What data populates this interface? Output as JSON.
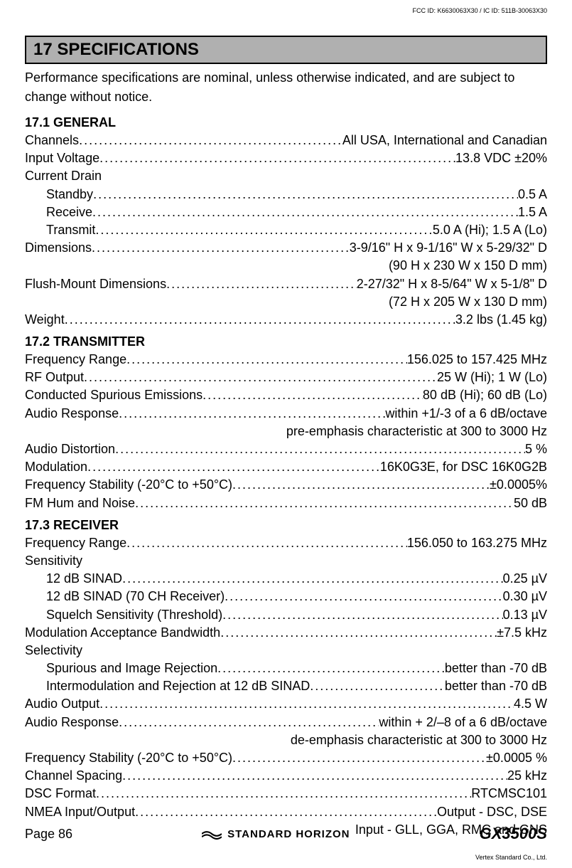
{
  "header_id": "FCC ID: K6630063X30 / IC ID: 511B-30063X30",
  "section": {
    "title": "17  SPECIFICATIONS",
    "intro": "Performance specifications are nominal, unless otherwise indicated, and are subject to change without notice."
  },
  "general": {
    "title": "17.1  GENERAL",
    "specs": [
      {
        "label": "Channels",
        "value": "All USA, International and Canadian",
        "indent": false
      },
      {
        "label": "Input Voltage",
        "value": "13.8 VDC ±20%",
        "indent": false
      },
      {
        "label": "Current Drain",
        "value": "",
        "indent": false,
        "nodots": true
      },
      {
        "label": "Standby",
        "value": "0.5 A",
        "indent": true
      },
      {
        "label": "Receive",
        "value": "1.5 A",
        "indent": true
      },
      {
        "label": "Transmit",
        "value": "5.0 A (Hi); 1.5 A (Lo)",
        "indent": true
      },
      {
        "label": "Dimensions",
        "value": "3-9/16\" H x 9-1/16\" W x 5-29/32\" D",
        "indent": false
      },
      {
        "label": "",
        "value": "(90 H x 230 W x 150 D mm)",
        "indent": false,
        "continuation": true
      },
      {
        "label": "Flush-Mount Dimensions",
        "value": "2-27/32\" H x 8-5/64\" W x 5-1/8\" D",
        "indent": false
      },
      {
        "label": "",
        "value": "(72 H x 205 W x 130 D mm)",
        "indent": false,
        "continuation": true
      },
      {
        "label": "Weight",
        "value": "3.2 lbs (1.45 kg)",
        "indent": false
      }
    ]
  },
  "transmitter": {
    "title": "17.2  TRANSMITTER",
    "specs": [
      {
        "label": "Frequency Range",
        "value": "156.025 to 157.425 MHz",
        "indent": false
      },
      {
        "label": "RF Output",
        "value": "25 W (Hi); 1 W (Lo)",
        "indent": false
      },
      {
        "label": "Conducted Spurious Emissions",
        "value": "80 dB (Hi); 60 dB (Lo)",
        "indent": false
      },
      {
        "label": "Audio Response",
        "value": "within +1/-3 of a 6 dB/octave",
        "indent": false
      },
      {
        "label": "",
        "value": "pre-emphasis characteristic at 300 to 3000 Hz",
        "indent": false,
        "continuation": true
      },
      {
        "label": "Audio Distortion",
        "value": "5 %",
        "indent": false
      },
      {
        "label": "Modulation",
        "value": "16K0G3E, for DSC 16K0G2B",
        "indent": false
      },
      {
        "label": "Frequency Stability (-20°C to +50°C)",
        "value": "±0.0005%",
        "indent": false
      },
      {
        "label": "FM Hum and Noise",
        "value": "50 dB",
        "indent": false
      }
    ]
  },
  "receiver": {
    "title": "17.3  RECEIVER",
    "specs": [
      {
        "label": "Frequency Range",
        "value": "156.050 to 163.275 MHz",
        "indent": false
      },
      {
        "label": "Sensitivity",
        "value": "",
        "indent": false,
        "nodots": true
      },
      {
        "label": "12 dB SINAD",
        "value": "0.25 µV",
        "indent": true
      },
      {
        "label": "12 dB SINAD (70 CH Receiver)",
        "value": "0.30 µV",
        "indent": true
      },
      {
        "label": "Squelch Sensitivity (Threshold)",
        "value": "0.13 µV",
        "indent": true
      },
      {
        "label": "Modulation Acceptance Bandwidth",
        "value": "±7.5 kHz",
        "indent": false
      },
      {
        "label": "Selectivity",
        "value": "",
        "indent": false,
        "nodots": true
      },
      {
        "label": "Spurious and Image Rejection",
        "value": "better than -70 dB",
        "indent": true
      },
      {
        "label": "Intermodulation and Rejection at 12 dB SINAD",
        "value": "better than -70 dB",
        "indent": true
      },
      {
        "label": "Audio Output",
        "value": "4.5 W",
        "indent": false
      },
      {
        "label": "Audio Response",
        "value": "within + 2/–8 of a 6 dB/octave",
        "indent": false
      },
      {
        "label": "",
        "value": "de-emphasis characteristic at 300 to 3000 Hz",
        "indent": false,
        "continuation": true
      },
      {
        "label": "Frequency Stability (-20°C to +50°C)",
        "value": "±0.0005 %",
        "indent": false
      },
      {
        "label": "Channel Spacing",
        "value": "25 kHz",
        "indent": false
      },
      {
        "label": "DSC Format",
        "value": "RTCMSC101",
        "indent": false
      },
      {
        "label": "NMEA Input/Output",
        "value": "Output - DSC, DSE",
        "indent": false
      },
      {
        "label": "",
        "value": "Input - GLL, GGA, RMC and GNS",
        "indent": false,
        "continuation": true
      }
    ]
  },
  "footer": {
    "page": "Page 86",
    "brand": "STANDARD HORIZON",
    "model": "GX3500S",
    "company": "Vertex Standard Co., Ltd."
  },
  "dots": "............................................................................................................................................"
}
